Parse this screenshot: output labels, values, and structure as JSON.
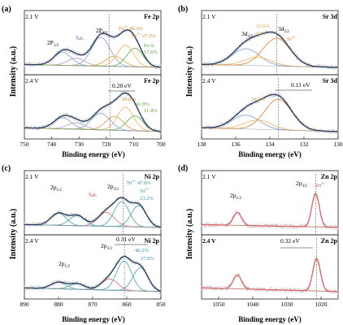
{
  "figure": {
    "ylabel": "Intensity (a.u.)",
    "xlabel": "Binding energy (eV)"
  },
  "chart_data": [
    {
      "id": "a",
      "panel_label": "(a)",
      "type": "line",
      "element": "Fe 2p",
      "xlabel": "Binding energy (eV)",
      "ylabel": "Intensity (a.u.)",
      "xlim": [
        750,
        700
      ],
      "xticks": [
        750,
        740,
        730,
        720,
        710,
        700
      ],
      "subplots": [
        {
          "condition": "2.1 V",
          "element": "Fe 2p",
          "peak_labels": [
            "2P1/2",
            "Sat.",
            "2P3/2",
            "Fe3+ 38.3%",
            "Fe2+ 27.3%",
            "Fe-S 17.6%"
          ],
          "peaks": [
            {
              "center": 736,
              "height": 0.28,
              "width": 3.2,
              "color": "#8aa6d6"
            },
            {
              "center": 731,
              "height": 0.16,
              "width": 3.2,
              "color": "#b9a2d2"
            },
            {
              "center": 722,
              "height": 0.62,
              "width": 3.4,
              "color": "#8aa6d6"
            },
            {
              "center": 717,
              "height": 0.22,
              "width": 3.2,
              "color": "#e8a14a"
            },
            {
              "center": 713,
              "height": 0.46,
              "width": 3.0,
              "color": "#f0b968"
            },
            {
              "center": 709.5,
              "height": 0.4,
              "width": 3.0,
              "color": "#6fb64f"
            }
          ],
          "ref_line": 719
        },
        {
          "condition": "2.4 V",
          "element": "Fe 2p",
          "shift": "0.28 eV",
          "peak_labels": [
            "29.8%",
            "41.9%",
            "11.4%"
          ],
          "peaks": [
            {
              "center": 736,
              "height": 0.24,
              "width": 3.2,
              "color": "#8aa6d6"
            },
            {
              "center": 731,
              "height": 0.14,
              "width": 3.2,
              "color": "#b9a2d2"
            },
            {
              "center": 722,
              "height": 0.36,
              "width": 3.4,
              "color": "#8aa6d6"
            },
            {
              "center": 717,
              "height": 0.3,
              "width": 3.2,
              "color": "#e8a14a"
            },
            {
              "center": 713,
              "height": 0.5,
              "width": 3.0,
              "color": "#f0b968"
            },
            {
              "center": 709.5,
              "height": 0.32,
              "width": 3.0,
              "color": "#6fb64f"
            }
          ],
          "ref_line": 718.7
        }
      ]
    },
    {
      "id": "b",
      "panel_label": "(b)",
      "type": "line",
      "element": "Sr 3d",
      "xlabel": "Binding energy (eV)",
      "ylabel": "Intensity (a.u.)",
      "xlim": [
        138,
        130
      ],
      "xticks": [
        138,
        136,
        134,
        132,
        130
      ],
      "subplots": [
        {
          "condition": "2.1 V",
          "element": "Sr 3d",
          "peak_labels": [
            "3d3/2",
            "3d5/2",
            "32.6%",
            "Sr-S",
            "Sr2+"
          ],
          "peaks": [
            {
              "center": 135.4,
              "height": 0.36,
              "width": 0.8,
              "color": "#8aa6d6"
            },
            {
              "center": 134.7,
              "height": 0.18,
              "width": 0.8,
              "color": "#f0b968"
            },
            {
              "center": 133.6,
              "height": 0.6,
              "width": 0.8,
              "color": "#e8873a"
            }
          ],
          "ref_line": 133.6
        },
        {
          "condition": "2.4 V",
          "element": "Sr 3d",
          "shift": "0.11 eV",
          "peak_labels": [
            "24.3%"
          ],
          "peaks": [
            {
              "center": 135.4,
              "height": 0.3,
              "width": 0.8,
              "color": "#8aa6d6"
            },
            {
              "center": 134.7,
              "height": 0.2,
              "width": 0.8,
              "color": "#f0b968"
            },
            {
              "center": 133.5,
              "height": 0.66,
              "width": 0.8,
              "color": "#e8873a"
            }
          ],
          "ref_line": 133.5
        }
      ]
    },
    {
      "id": "c",
      "panel_label": "(c)",
      "type": "line",
      "element": "Ni 2p",
      "xlabel": "Binding energy (eV)",
      "ylabel": "Intensity (a.u.)",
      "xlim": [
        890,
        850
      ],
      "xticks": [
        890,
        880,
        870,
        860,
        850
      ],
      "subplots": [
        {
          "condition": "2.1 V",
          "element": "Ni 2p",
          "peak_labels": [
            "2p1/2",
            "Sat.",
            "2p3/2",
            "Ni3+ 47.8%",
            "Ni2+ 23.2%"
          ],
          "peaks": [
            {
              "center": 880,
              "height": 0.26,
              "width": 2.2,
              "color": "#5aa7b5"
            },
            {
              "center": 874.5,
              "height": 0.22,
              "width": 2.2,
              "color": "#5aa7b5"
            },
            {
              "center": 866,
              "height": 0.3,
              "width": 2.4,
              "color": "#e27a7a"
            },
            {
              "center": 861.5,
              "height": 0.54,
              "width": 2.2,
              "color": "#5aa7b5"
            },
            {
              "center": 856.5,
              "height": 0.46,
              "width": 2.2,
              "color": "#5aa7b5"
            }
          ],
          "ref_line": 861
        },
        {
          "condition": "2.4 V",
          "element": "Ni 2p",
          "shift": "0.31 eV",
          "peak_labels": [
            "2p1/2",
            "2p3/2",
            "40.2%",
            "37.8%"
          ],
          "peaks": [
            {
              "center": 880,
              "height": 0.14,
              "width": 2.2,
              "color": "#5aa7b5"
            },
            {
              "center": 874.5,
              "height": 0.12,
              "width": 2.2,
              "color": "#5aa7b5"
            },
            {
              "center": 865,
              "height": 0.24,
              "width": 2.4,
              "color": "#e27a7a"
            },
            {
              "center": 860.8,
              "height": 0.64,
              "width": 2.2,
              "color": "#5aa7b5"
            },
            {
              "center": 856,
              "height": 0.5,
              "width": 2.2,
              "color": "#5aa7b5"
            }
          ],
          "ref_line": 860.7
        }
      ]
    },
    {
      "id": "d",
      "panel_label": "(d)",
      "type": "line",
      "element": "Zn 2p",
      "xlabel": "Binding energy (eV)",
      "ylabel": "Intensity (a.u.)",
      "xlim": [
        1055,
        1015
      ],
      "xticks": [
        1050,
        1040,
        1030,
        1020
      ],
      "subplots": [
        {
          "condition": "2.1 V",
          "element": "Zn 2p",
          "peak_labels": [
            "2p1/2",
            "2p3/2",
            "Zn2+"
          ],
          "peaks": [
            {
              "center": 1044.5,
              "height": 0.28,
              "width": 1.2,
              "color": "#e06767"
            },
            {
              "center": 1021.6,
              "height": 0.72,
              "width": 1.1,
              "color": "#e06767"
            }
          ],
          "ref_line": 1021.6
        },
        {
          "condition": "2.4 V",
          "element": "Zn 2p",
          "shift": "0.32 eV",
          "peak_labels": [],
          "peaks": [
            {
              "center": 1044.5,
              "height": 0.3,
              "width": 1.2,
              "color": "#e06767"
            },
            {
              "center": 1021.3,
              "height": 0.7,
              "width": 1.1,
              "color": "#e06767"
            }
          ],
          "ref_line": 1021.3
        }
      ]
    }
  ]
}
